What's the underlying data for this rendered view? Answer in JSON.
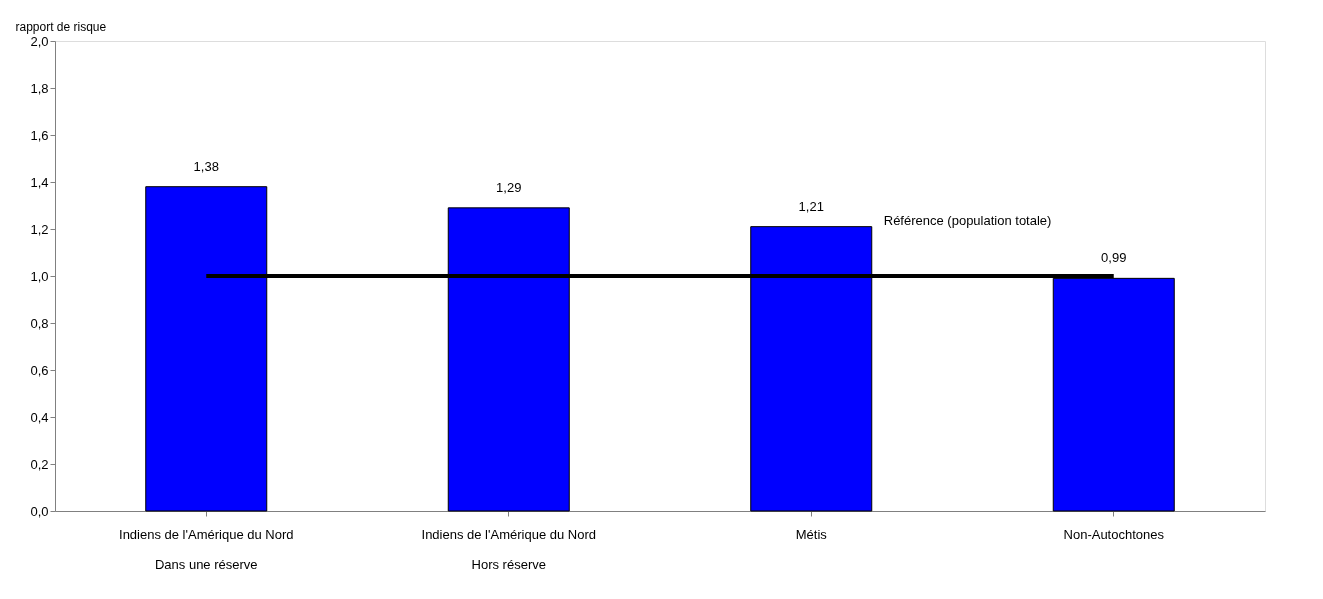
{
  "chart_data": {
    "type": "bar",
    "ylabel": "rapport de risque",
    "categories": [
      "Indiens de l'Amérique du Nord\nDans une réserve",
      "Indiens de l'Amérique du Nord\nHors réserve",
      "Métis",
      "Non-Autochtones"
    ],
    "values": [
      1.38,
      1.29,
      1.21,
      0.99
    ],
    "value_labels": [
      "1,38",
      "1,29",
      "1,21",
      "0,99"
    ],
    "color": "#0000ff",
    "ylim": [
      0,
      2
    ],
    "yticks": [
      {
        "value": 0,
        "label": "0,0"
      },
      {
        "value": 0.2,
        "label": "0,2"
      },
      {
        "value": 0.4,
        "label": "0,4"
      },
      {
        "value": 0.6,
        "label": "0,6"
      },
      {
        "value": 0.8,
        "label": "0,8"
      },
      {
        "value": 1,
        "label": "1,0"
      },
      {
        "value": 1.2,
        "label": "1,2"
      },
      {
        "value": 1.4,
        "label": "1,4"
      },
      {
        "value": 1.6,
        "label": "1,6"
      },
      {
        "value": 1.8,
        "label": "1,8"
      },
      {
        "value": 2,
        "label": "2,0"
      }
    ],
    "ref_lines": [
      {
        "axis": "y",
        "value": 1,
        "label": "Référence (population totale)",
        "color": "#000000"
      }
    ],
    "grid": false
  }
}
